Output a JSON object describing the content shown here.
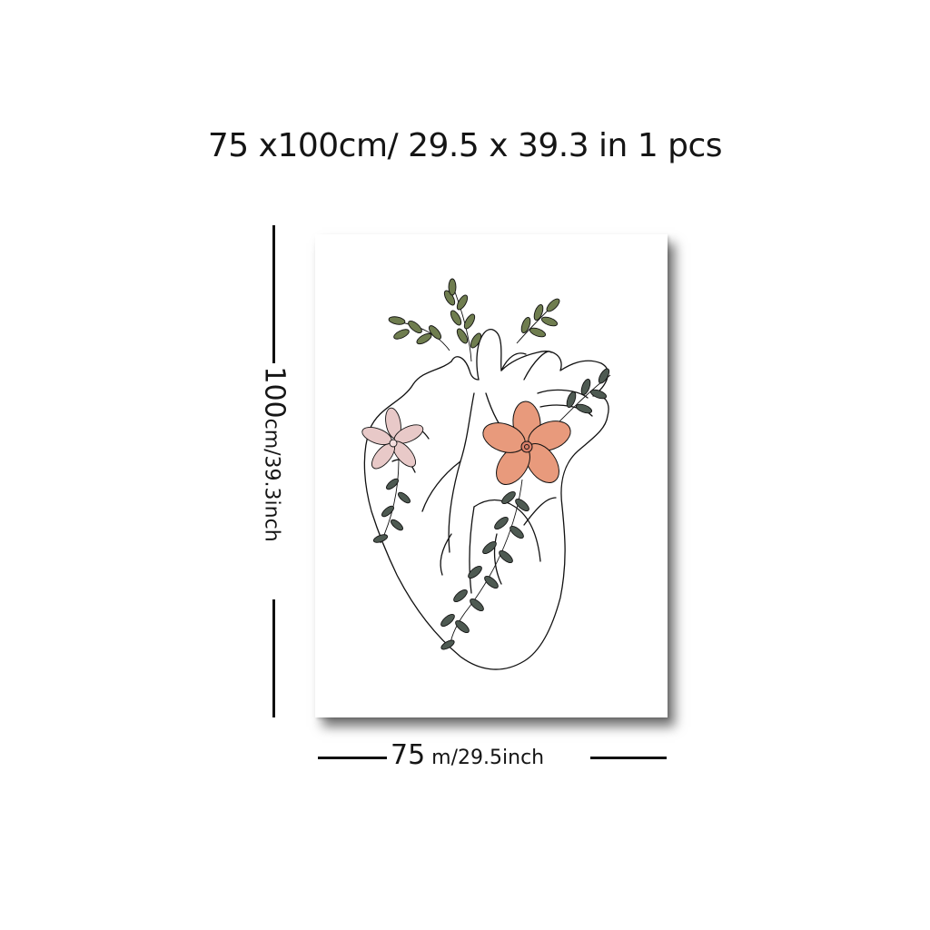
{
  "header": {
    "title": "75 x100cm/ 29.5 x 39.3 in 1 pcs"
  },
  "dimensions": {
    "height_value": "100",
    "height_unit_text": "cm/39.3inch",
    "width_value": "75",
    "width_unit_text": " m/29.5inch"
  },
  "artwork": {
    "subject": "heart-with-flowers",
    "line_color": "#111111",
    "leaf_color": "#6f7d4f",
    "dark_leaf_color": "#4e5a52",
    "pink_flower_color": "#e8c9c8",
    "orange_flower_color": "#e89a7c"
  }
}
